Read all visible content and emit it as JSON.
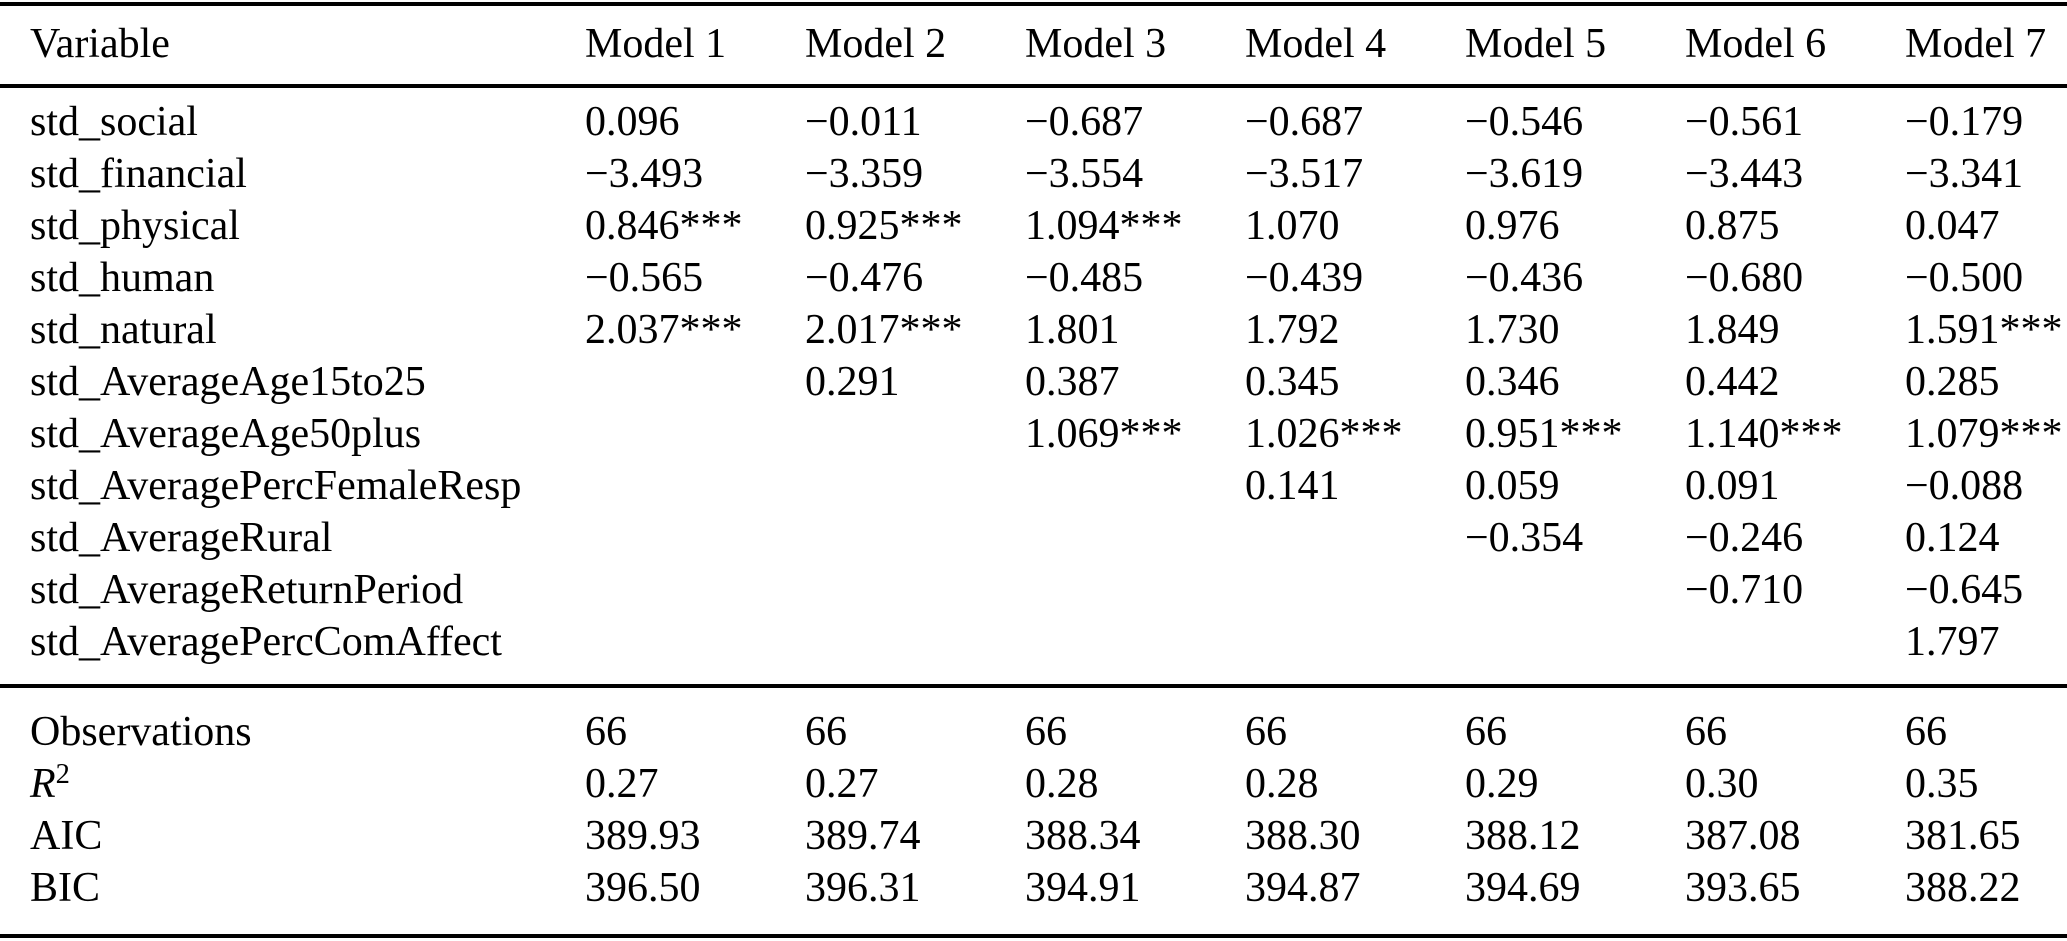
{
  "colors": {
    "background": "#ffffff",
    "text": "#000000",
    "rule": "#000000"
  },
  "table": {
    "header": [
      "Variable",
      "Model 1",
      "Model 2",
      "Model 3",
      "Model 4",
      "Model 5",
      "Model 6",
      "Model 7"
    ],
    "variable_rows": [
      {
        "label": "std_social",
        "values": [
          "0.096",
          "−0.011",
          "−0.687",
          "−0.687",
          "−0.546",
          "−0.561",
          "−0.179"
        ]
      },
      {
        "label": "std_financial",
        "values": [
          "−3.493",
          "−3.359",
          "−3.554",
          "−3.517",
          "−3.619",
          "−3.443",
          "−3.341"
        ]
      },
      {
        "label": "std_physical",
        "values": [
          "0.846***",
          "0.925***",
          "1.094***",
          "1.070",
          "0.976",
          "0.875",
          "0.047"
        ]
      },
      {
        "label": "std_human",
        "values": [
          "−0.565",
          "−0.476",
          "−0.485",
          "−0.439",
          "−0.436",
          "−0.680",
          "−0.500"
        ]
      },
      {
        "label": "std_natural",
        "values": [
          "2.037***",
          "2.017***",
          "1.801",
          "1.792",
          "1.730",
          "1.849",
          "1.591***"
        ]
      },
      {
        "label": "std_AverageAge15to25",
        "values": [
          "",
          "0.291",
          "0.387",
          "0.345",
          "0.346",
          "0.442",
          "0.285"
        ]
      },
      {
        "label": "std_AverageAge50plus",
        "values": [
          "",
          "",
          "1.069***",
          "1.026***",
          "0.951***",
          "1.140***",
          "1.079***"
        ]
      },
      {
        "label": "std_AveragePercFemaleResp",
        "values": [
          "",
          "",
          "",
          "0.141",
          "0.059",
          "0.091",
          "−0.088"
        ]
      },
      {
        "label": "std_AverageRural",
        "values": [
          "",
          "",
          "",
          "",
          "−0.354",
          "−0.246",
          "0.124"
        ]
      },
      {
        "label": "std_AverageReturnPeriod",
        "values": [
          "",
          "",
          "",
          "",
          "",
          "−0.710",
          "−0.645"
        ]
      },
      {
        "label": "std_AveragePercComAffect",
        "values": [
          "",
          "",
          "",
          "",
          "",
          "",
          "1.797"
        ]
      }
    ],
    "stat_rows": [
      {
        "label": "Observations",
        "values": [
          "66",
          "66",
          "66",
          "66",
          "66",
          "66",
          "66"
        ]
      },
      {
        "label": "R",
        "label_sup": "2",
        "label_italic": true,
        "values": [
          "0.27",
          "0.27",
          "0.28",
          "0.28",
          "0.29",
          "0.30",
          "0.35"
        ]
      },
      {
        "label": "AIC",
        "values": [
          "389.93",
          "389.74",
          "388.34",
          "388.30",
          "388.12",
          "387.08",
          "381.65"
        ]
      },
      {
        "label": "BIC",
        "values": [
          "396.50",
          "396.31",
          "394.91",
          "394.87",
          "394.69",
          "393.65",
          "388.22"
        ]
      }
    ]
  }
}
